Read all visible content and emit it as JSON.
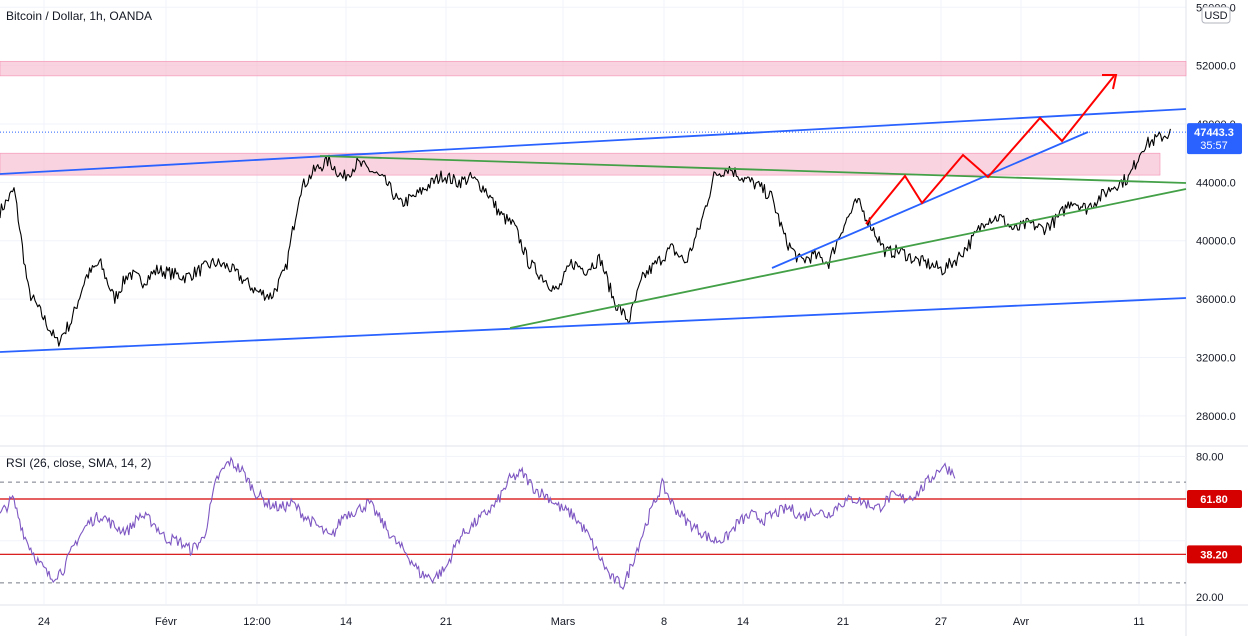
{
  "header": {
    "title": "Bitcoin / Dollar, 1h, OANDA"
  },
  "currency_label": "USD",
  "colors": {
    "candle": "#000000",
    "zone": "#f8bbd0",
    "trend_blue": "#2962ff",
    "trend_green": "#43a047",
    "projection_red": "#ff0000",
    "rsi_line": "#7e57c2",
    "rsi_level": "#d50000",
    "price_badge": "#2962ff"
  },
  "chart_data": [
    {
      "type": "line",
      "title": "Bitcoin / Dollar, 1h, OANDA",
      "x_axis": {
        "type": "date",
        "range": [
          "2021-01-20",
          "2021-04-13"
        ],
        "tick_labels": [
          "24",
          "Févr",
          "12:00",
          "14",
          "21",
          "Mars",
          "8",
          "14",
          "21",
          "27",
          "Avr",
          "11"
        ]
      },
      "y_axis": {
        "range": [
          26000,
          56500
        ],
        "ticks": [
          56000,
          52000,
          48000,
          44000,
          40000,
          36000,
          32000,
          28000
        ],
        "tick_labels": [
          "56000.0",
          "52000.0",
          "48000.0",
          "44000.0",
          "40000.0",
          "36000.0",
          "32000.0",
          "28000.0"
        ]
      },
      "series": [
        {
          "points": [
            [
              "2021-01-20",
              42000
            ],
            [
              "2021-01-21",
              43500
            ],
            [
              "2021-01-22",
              36500
            ],
            [
              "2021-01-23",
              34800
            ],
            [
              "2021-01-24",
              33000
            ],
            [
              "2021-01-25",
              34500
            ],
            [
              "2021-01-26",
              37500
            ],
            [
              "2021-01-27",
              38500
            ],
            [
              "2021-01-28",
              36000
            ],
            [
              "2021-01-29",
              37800
            ],
            [
              "2021-01-30",
              37200
            ],
            [
              "2021-01-31",
              38000
            ],
            [
              "2021-02-02",
              37500
            ],
            [
              "2021-02-04",
              38500
            ],
            [
              "2021-02-05",
              38200
            ],
            [
              "2021-02-07",
              36500
            ],
            [
              "2021-02-08",
              36200
            ],
            [
              "2021-02-09",
              38000
            ],
            [
              "2021-02-10",
              43500
            ],
            [
              "2021-02-11",
              44800
            ],
            [
              "2021-02-12",
              45500
            ],
            [
              "2021-02-13",
              44300
            ],
            [
              "2021-02-14",
              45300
            ],
            [
              "2021-02-15",
              44800
            ],
            [
              "2021-02-16",
              44000
            ],
            [
              "2021-02-17",
              42500
            ],
            [
              "2021-02-18",
              43000
            ],
            [
              "2021-02-19",
              43800
            ],
            [
              "2021-02-20",
              44500
            ],
            [
              "2021-02-21",
              44000
            ],
            [
              "2021-02-22",
              44300
            ],
            [
              "2021-02-23",
              43500
            ],
            [
              "2021-02-24",
              41800
            ],
            [
              "2021-02-25",
              41000
            ],
            [
              "2021-02-26",
              38500
            ],
            [
              "2021-02-27",
              37500
            ],
            [
              "2021-02-28",
              36500
            ],
            [
              "2021-03-01",
              38500
            ],
            [
              "2021-03-02",
              38000
            ],
            [
              "2021-03-03",
              38800
            ],
            [
              "2021-03-04",
              35800
            ],
            [
              "2021-03-05",
              34500
            ],
            [
              "2021-03-06",
              37500
            ],
            [
              "2021-03-07",
              38500
            ],
            [
              "2021-03-08",
              39500
            ],
            [
              "2021-03-09",
              38500
            ],
            [
              "2021-03-10",
              41000
            ],
            [
              "2021-03-11",
              44500
            ],
            [
              "2021-03-12",
              45000
            ],
            [
              "2021-03-13",
              44300
            ],
            [
              "2021-03-14",
              43800
            ],
            [
              "2021-03-15",
              43000
            ],
            [
              "2021-03-16",
              40000
            ],
            [
              "2021-03-17",
              38600
            ],
            [
              "2021-03-18",
              39000
            ],
            [
              "2021-03-19",
              38500
            ],
            [
              "2021-03-20",
              41000
            ],
            [
              "2021-03-21",
              42700
            ],
            [
              "2021-03-22",
              41000
            ],
            [
              "2021-03-23",
              39200
            ],
            [
              "2021-03-24",
              39300
            ],
            [
              "2021-03-25",
              38700
            ],
            [
              "2021-03-26",
              38400
            ],
            [
              "2021-03-27",
              38000
            ],
            [
              "2021-03-28",
              38800
            ],
            [
              "2021-03-29",
              40000
            ],
            [
              "2021-03-30",
              41500
            ],
            [
              "2021-03-31",
              41600
            ],
            [
              "2021-04-01",
              40700
            ],
            [
              "2021-04-02",
              41200
            ],
            [
              "2021-04-03",
              40800
            ],
            [
              "2021-04-04",
              41500
            ],
            [
              "2021-04-05",
              42800
            ],
            [
              "2021-04-06",
              42200
            ],
            [
              "2021-04-07",
              43000
            ],
            [
              "2021-04-08",
              43800
            ],
            [
              "2021-04-09",
              44300
            ],
            [
              "2021-04-10",
              46500
            ],
            [
              "2021-04-11",
              47000
            ],
            [
              "2021-04-12",
              47443.3
            ]
          ]
        }
      ],
      "current_price": {
        "value": "47443.3",
        "countdown": "35:57"
      },
      "zones": [
        {
          "from": 51300,
          "to": 52300
        },
        {
          "from": 44500,
          "to": 46000
        }
      ]
    },
    {
      "type": "line",
      "title": "RSI (26, close, SMA, 14, 2)",
      "y_axis": {
        "range": [
          17,
          84
        ],
        "tick_labels": [
          "80.00",
          "20.00"
        ]
      },
      "levels": [
        {
          "value": 61.8,
          "label": "61.80"
        },
        {
          "value": 38.2,
          "label": "38.20"
        }
      ],
      "series": [
        {
          "values": [
            55,
            62,
            45,
            35,
            28,
            32,
            44,
            52,
            55,
            50,
            48,
            55,
            52,
            45,
            44,
            40,
            45,
            70,
            78,
            74,
            65,
            60,
            58,
            60,
            54,
            50,
            45,
            55,
            57,
            60,
            52,
            44,
            38,
            30,
            28,
            32,
            45,
            50,
            55,
            60,
            70,
            73,
            66,
            63,
            58,
            55,
            48,
            38,
            28,
            25,
            40,
            55,
            68,
            58,
            52,
            48,
            44,
            45,
            52,
            55,
            53,
            56,
            58,
            54,
            57,
            55,
            60,
            62,
            60,
            58,
            63,
            62,
            64,
            70,
            76,
            73
          ]
        }
      ]
    }
  ]
}
